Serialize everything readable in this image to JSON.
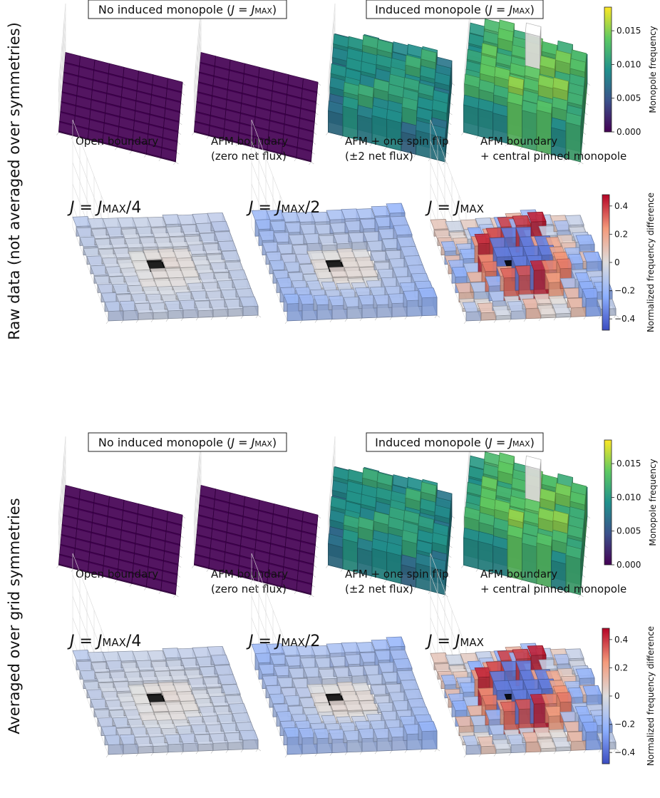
{
  "figure": {
    "section_labels": [
      "Raw data (not averaged over symmetries)",
      "Averaged over grid symmetries"
    ],
    "section_kinds": [
      "raw",
      "averaged"
    ]
  },
  "text": {
    "header_no_induced": "No induced monopole (J = J_MAX)",
    "header_induced": "Induced monopole (J = J_MAX)",
    "captions": [
      [
        "Open boundary",
        ""
      ],
      [
        "AFM boundary",
        "(zero net flux)"
      ],
      [
        "AFM + one spin flip",
        "(±2 net flux)"
      ],
      [
        "AFM boundary",
        "+ central pinned monopole"
      ]
    ],
    "j_labels": [
      "J = J_MAX/4",
      "J = J_MAX/2",
      "J = J_MAX"
    ]
  },
  "colors": {
    "viridis_dark": "#440154",
    "viridis_mid": "#21918c",
    "viridis_bright": "#fde725",
    "coolwarm_blue": "#3b4cc0",
    "coolwarm_white": "#dddddd",
    "coolwarm_red": "#b40426",
    "pinned_monopole": "#ffffff",
    "center_black": "#000000"
  },
  "chart_data": [
    {
      "type": "bar3d",
      "colorbar": {
        "label": "Monopole frequency",
        "ticks": [
          0.0,
          0.005,
          0.01,
          0.015
        ],
        "tick_labels": [
          "0.000",
          "0.005",
          "0.010",
          "0.015"
        ],
        "range": [
          0.0,
          0.0185
        ],
        "colormap": "viridis"
      },
      "grid_size": [
        8,
        8
      ],
      "panels": [
        {
          "name": "Open boundary",
          "peak_frequency": 0.0
        },
        {
          "name": "AFM boundary (zero net flux)",
          "peak_frequency": 0.0
        },
        {
          "name": "AFM + one spin flip (±2 net flux)",
          "peak_frequency": 0.013
        },
        {
          "name": "AFM boundary + central pinned monopole",
          "peak_frequency": 0.017
        }
      ]
    },
    {
      "type": "bar3d",
      "colorbar": {
        "label": "Normalized frequency difference",
        "ticks": [
          0.4,
          0.2,
          0,
          -0.2,
          -0.4
        ],
        "tick_labels": [
          "0.4",
          "0.2",
          "0",
          "−0.2",
          "−0.4"
        ],
        "range": [
          -0.48,
          0.48
        ],
        "colormap": "coolwarm"
      },
      "grid_size": [
        10,
        10
      ],
      "panels": [
        {
          "name": "J = J_MAX/4",
          "range": [
            -0.1,
            0.05
          ]
        },
        {
          "name": "J = J_MAX/2",
          "range": [
            -0.2,
            0.1
          ]
        },
        {
          "name": "J = J_MAX",
          "range": [
            -0.4,
            0.45
          ]
        }
      ]
    }
  ]
}
